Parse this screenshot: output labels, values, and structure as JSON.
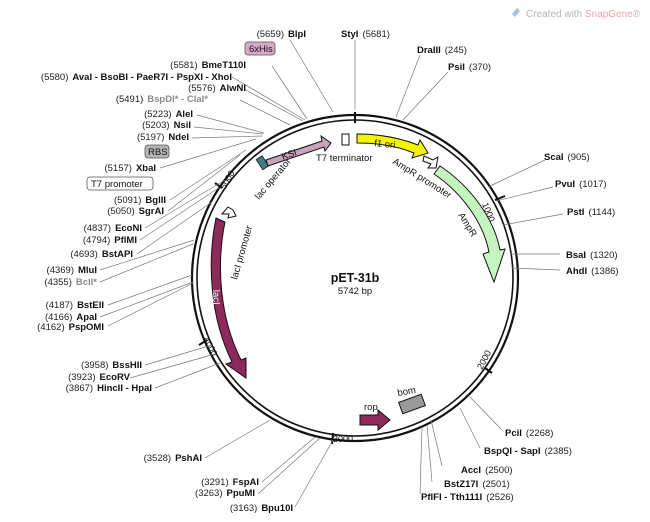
{
  "watermark": {
    "prefix": "Created with ",
    "brand": "SnapGene",
    "suffix": "®"
  },
  "plasmid": {
    "name": "pET-31b",
    "length_text": "5742 bp",
    "length": 5742
  },
  "ticks": [
    "1000",
    "2000",
    "3000",
    "4000",
    "5000"
  ],
  "features": {
    "ksi": "KSI",
    "t7_terminator": "T7 terminator",
    "lac_operator": "lac operator",
    "f1_ori": "f1 ori",
    "ampr_promoter": "AmpR promoter",
    "ampr": "AmpR",
    "laci_promoter": "lacI promoter",
    "laci": "lacI",
    "rop": "rop",
    "bom": "bom",
    "sixhis": "6xHis",
    "rbs": "RBS",
    "t7_promoter": "T7 promoter"
  },
  "sites_right": [
    {
      "name": "StyI",
      "pos": "(5681)"
    },
    {
      "name": "DraIII",
      "pos": "(245)"
    },
    {
      "name": "PsiI",
      "pos": "(370)"
    },
    {
      "name": "ScaI",
      "pos": "(905)"
    },
    {
      "name": "PvuI",
      "pos": "(1017)"
    },
    {
      "name": "PstI",
      "pos": "(1144)"
    },
    {
      "name": "BsaI",
      "pos": "(1320)"
    },
    {
      "name": "AhdI",
      "pos": "(1386)"
    },
    {
      "name": "PciI",
      "pos": "(2268)"
    },
    {
      "name": "BspQI - SapI",
      "pos": "(2385)"
    },
    {
      "name": "AccI",
      "pos": "(2500)"
    },
    {
      "name": "BstZ17I",
      "pos": "(2501)"
    },
    {
      "name": "PflFI - Tth111I",
      "pos": "(2526)"
    }
  ],
  "sites_left": [
    {
      "name": "BlpI",
      "pos": "(5659)"
    },
    {
      "name": "BmeT110I",
      "pos": "(5581)"
    },
    {
      "name": "AvaI - BsoBI - PaeR7I - PspXI - XhoI",
      "pos": "(5580)"
    },
    {
      "name": "AlwNI",
      "pos": "(5576)"
    },
    {
      "name": "BspDI* - ClaI*",
      "pos": "(5491)"
    },
    {
      "name": "AleI",
      "pos": "(5223)"
    },
    {
      "name": "NsiI",
      "pos": "(5203)"
    },
    {
      "name": "NdeI",
      "pos": "(5197)"
    },
    {
      "name": "XbaI",
      "pos": "(5157)"
    },
    {
      "name": "BglII",
      "pos": "(5091)"
    },
    {
      "name": "SgrAI",
      "pos": "(5050)"
    },
    {
      "name": "EcoNI",
      "pos": "(4837)"
    },
    {
      "name": "PflMI",
      "pos": "(4794)"
    },
    {
      "name": "BstAPI",
      "pos": "(4693)"
    },
    {
      "name": "MluI",
      "pos": "(4369)"
    },
    {
      "name": "BclI*",
      "pos": "(4355)"
    },
    {
      "name": "BstEII",
      "pos": "(4187)"
    },
    {
      "name": "ApaI",
      "pos": "(4166)"
    },
    {
      "name": "PspOMI",
      "pos": "(4162)"
    },
    {
      "name": "BssHII",
      "pos": "(3958)"
    },
    {
      "name": "EcoRV",
      "pos": "(3923)"
    },
    {
      "name": "HincII - HpaI",
      "pos": "(3867)"
    },
    {
      "name": "PshAI",
      "pos": "(3528)"
    },
    {
      "name": "FspAI",
      "pos": "(3291)"
    },
    {
      "name": "PpuMI",
      "pos": "(3263)"
    },
    {
      "name": "Bpu10I",
      "pos": "(3163)"
    }
  ],
  "colors": {
    "backbone": "#111111",
    "ksi": "#c9a3b8",
    "f1_ori": "#f5f500",
    "ampr": "#c6f6c0",
    "laci": "#8c2a5c",
    "rop": "#8c2a5c",
    "bom": "#9a9a9a",
    "sixhis": "#d8a9c9",
    "rbs": "#b5b5b5",
    "lac_operator": "#3e7e86",
    "snapgene": "#f0a0b0"
  }
}
